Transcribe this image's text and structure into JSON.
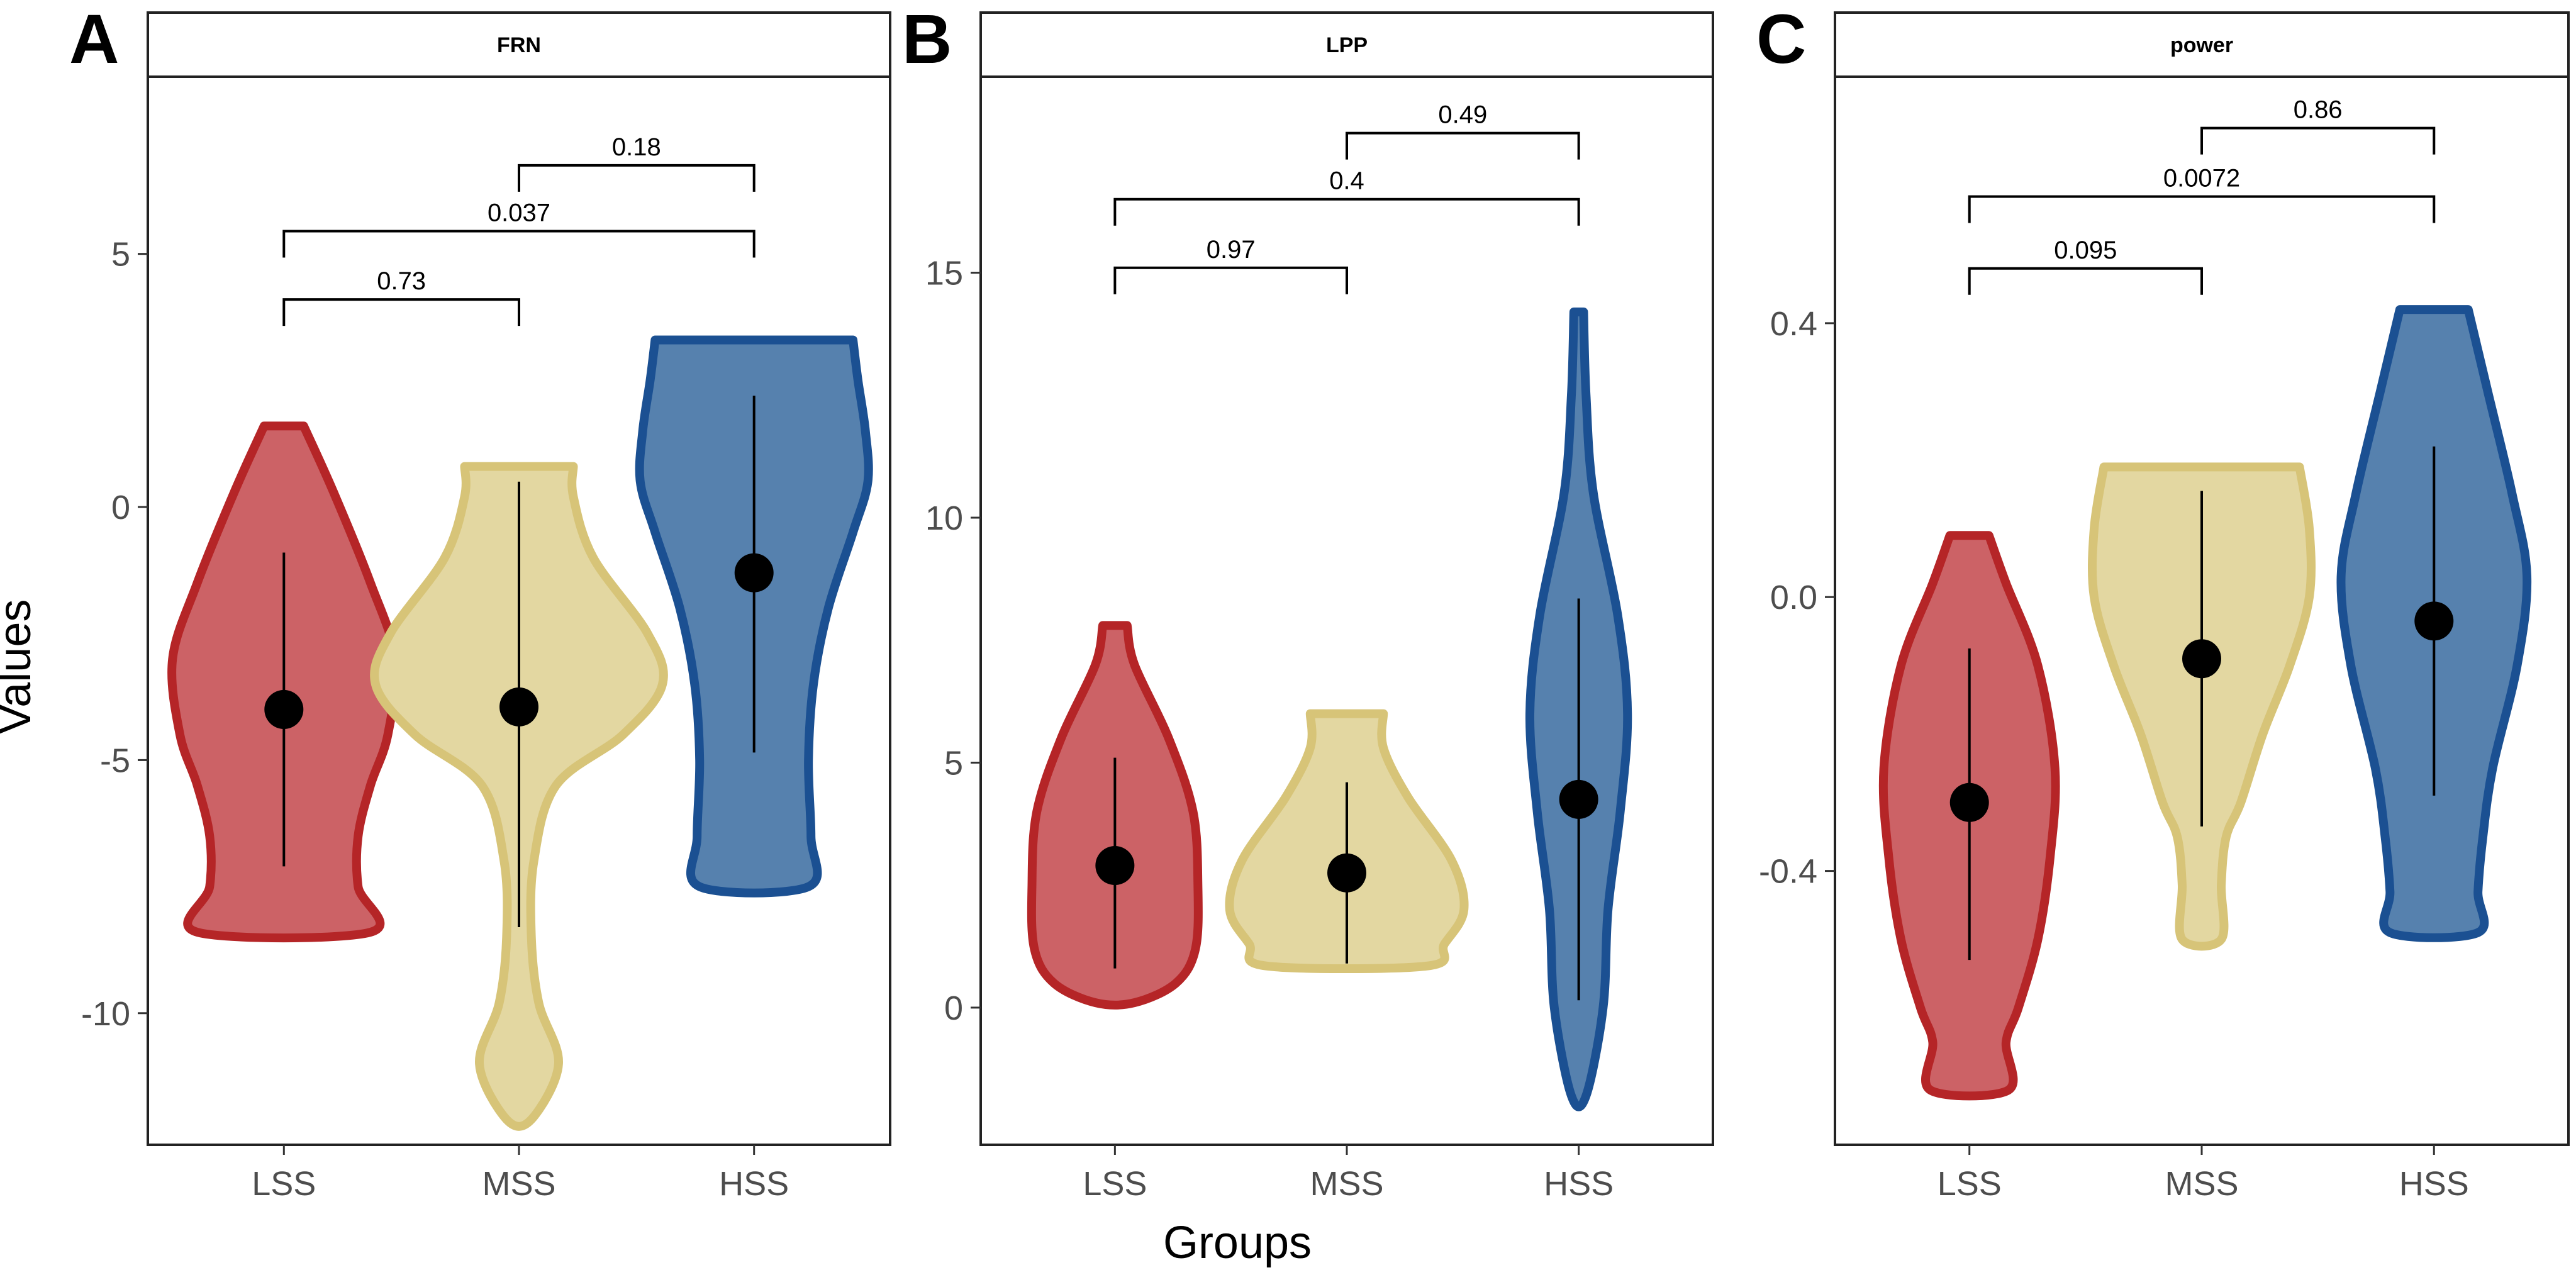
{
  "axis": {
    "x_title": "Groups",
    "y_title": "Values"
  },
  "colors": {
    "LSS": {
      "fill": "#CC6266",
      "stroke": "#B52527"
    },
    "MSS": {
      "fill": "#E3D7A1",
      "stroke": "#D7C478"
    },
    "HSS": {
      "fill": "#5681AE",
      "stroke": "#1B5092"
    }
  },
  "chart_data": [
    {
      "type": "violin",
      "panel_letter": "A",
      "title": "FRN",
      "categories": [
        "LSS",
        "MSS",
        "HSS"
      ],
      "xlabel": "",
      "ylabel": "Values",
      "ylim": [
        -12.6,
        8.5
      ],
      "yticks": [
        5,
        0,
        -5,
        -10
      ],
      "ytick_labels": [
        "5",
        "0",
        "-5",
        "-10"
      ],
      "grid": false,
      "groups": [
        {
          "name": "LSS",
          "mean": -4.0,
          "low": -7.1,
          "high": -0.9,
          "profile": [
            [
              1.6,
              0.08
            ],
            [
              0.3,
              0.2
            ],
            [
              -1.5,
              0.35
            ],
            [
              -3.0,
              0.45
            ],
            [
              -4.5,
              0.42
            ],
            [
              -5.5,
              0.35
            ],
            [
              -6.5,
              0.3
            ],
            [
              -7.5,
              0.3
            ],
            [
              -8.4,
              0.35
            ]
          ]
        },
        {
          "name": "MSS",
          "mean": -3.95,
          "low": -8.3,
          "high": 0.5,
          "profile": [
            [
              0.8,
              0.22
            ],
            [
              0.2,
              0.22
            ],
            [
              -1.0,
              0.3
            ],
            [
              -2.5,
              0.52
            ],
            [
              -3.5,
              0.58
            ],
            [
              -4.5,
              0.42
            ],
            [
              -5.5,
              0.15
            ],
            [
              -7.0,
              0.06
            ],
            [
              -8.5,
              0.05
            ],
            [
              -9.8,
              0.08
            ],
            [
              -11.0,
              0.16
            ],
            [
              -12.1,
              0.05
            ]
          ]
        },
        {
          "name": "HSS",
          "mean": -1.3,
          "low": -4.85,
          "high": 2.2,
          "profile": [
            [
              3.3,
              0.4
            ],
            [
              2.5,
              0.42
            ],
            [
              1.5,
              0.45
            ],
            [
              0.5,
              0.46
            ],
            [
              -0.5,
              0.4
            ],
            [
              -2.0,
              0.3
            ],
            [
              -3.5,
              0.24
            ],
            [
              -5.0,
              0.22
            ],
            [
              -6.5,
              0.23
            ],
            [
              -7.5,
              0.22
            ]
          ]
        }
      ],
      "comparisons": [
        {
          "pair": [
            "MSS",
            "HSS"
          ],
          "label": "0.18",
          "y": 6.75
        },
        {
          "pair": [
            "LSS",
            "HSS"
          ],
          "label": "0.037",
          "y": 5.45
        },
        {
          "pair": [
            "LSS",
            "MSS"
          ],
          "label": "0.73",
          "y": 4.1
        }
      ]
    },
    {
      "type": "violin",
      "panel_letter": "B",
      "title": "LPP",
      "categories": [
        "LSS",
        "MSS",
        "HSS"
      ],
      "xlabel": "",
      "ylabel": "",
      "ylim": [
        -2.8,
        19.0
      ],
      "yticks": [
        15,
        10,
        5,
        0
      ],
      "ytick_labels": [
        "15",
        "10",
        "5",
        "0"
      ],
      "grid": false,
      "groups": [
        {
          "name": "LSS",
          "mean": 2.9,
          "low": 0.8,
          "high": 5.1,
          "profile": [
            [
              7.8,
              0.05
            ],
            [
              7.0,
              0.08
            ],
            [
              5.5,
              0.22
            ],
            [
              4.0,
              0.32
            ],
            [
              2.5,
              0.34
            ],
            [
              1.2,
              0.33
            ],
            [
              0.5,
              0.25
            ],
            [
              0.1,
              0.08
            ]
          ]
        },
        {
          "name": "MSS",
          "mean": 2.75,
          "low": 0.9,
          "high": 4.6,
          "profile": [
            [
              6.0,
              0.15
            ],
            [
              5.3,
              0.15
            ],
            [
              4.3,
              0.25
            ],
            [
              3.0,
              0.43
            ],
            [
              2.0,
              0.48
            ],
            [
              1.3,
              0.4
            ],
            [
              0.85,
              0.33
            ]
          ]
        },
        {
          "name": "HSS",
          "mean": 4.25,
          "low": 0.15,
          "high": 8.35,
          "profile": [
            [
              14.2,
              0.02
            ],
            [
              12.5,
              0.03
            ],
            [
              10.5,
              0.06
            ],
            [
              8.0,
              0.16
            ],
            [
              6.0,
              0.2
            ],
            [
              4.0,
              0.17
            ],
            [
              2.0,
              0.12
            ],
            [
              0.0,
              0.1
            ],
            [
              -1.8,
              0.03
            ]
          ]
        }
      ],
      "comparisons": [
        {
          "pair": [
            "MSS",
            "HSS"
          ],
          "label": "0.49",
          "y": 17.85
        },
        {
          "pair": [
            "LSS",
            "HSS"
          ],
          "label": "0.4",
          "y": 16.5
        },
        {
          "pair": [
            "LSS",
            "MSS"
          ],
          "label": "0.97",
          "y": 15.1
        }
      ]
    },
    {
      "type": "violin",
      "panel_letter": "C",
      "title": "power",
      "categories": [
        "LSS",
        "MSS",
        "HSS"
      ],
      "xlabel": "",
      "ylabel": "",
      "ylim": [
        -0.8,
        0.76
      ],
      "yticks": [
        0.4,
        0.0,
        -0.4
      ],
      "ytick_labels": [
        "0.4",
        "0.0",
        "-0.4"
      ],
      "grid": false,
      "groups": [
        {
          "name": "LSS",
          "mean": -0.3,
          "low": -0.53,
          "high": -0.075,
          "profile": [
            [
              0.09,
              0.08
            ],
            [
              0.02,
              0.15
            ],
            [
              -0.1,
              0.28
            ],
            [
              -0.25,
              0.35
            ],
            [
              -0.38,
              0.33
            ],
            [
              -0.5,
              0.28
            ],
            [
              -0.6,
              0.2
            ],
            [
              -0.65,
              0.15
            ],
            [
              -0.72,
              0.16
            ]
          ]
        },
        {
          "name": "MSS",
          "mean": -0.09,
          "low": -0.335,
          "high": 0.155,
          "profile": [
            [
              0.19,
              0.4
            ],
            [
              0.1,
              0.44
            ],
            [
              0.0,
              0.44
            ],
            [
              -0.1,
              0.36
            ],
            [
              -0.2,
              0.25
            ],
            [
              -0.3,
              0.16
            ],
            [
              -0.35,
              0.1
            ],
            [
              -0.42,
              0.08
            ],
            [
              -0.5,
              0.08
            ]
          ]
        },
        {
          "name": "HSS",
          "mean": -0.035,
          "low": -0.29,
          "high": 0.22,
          "profile": [
            [
              0.42,
              0.14
            ],
            [
              0.3,
              0.22
            ],
            [
              0.15,
              0.32
            ],
            [
              0.03,
              0.38
            ],
            [
              -0.1,
              0.34
            ],
            [
              -0.25,
              0.24
            ],
            [
              -0.35,
              0.2
            ],
            [
              -0.43,
              0.18
            ],
            [
              -0.49,
              0.18
            ]
          ]
        }
      ],
      "comparisons": [
        {
          "pair": [
            "MSS",
            "HSS"
          ],
          "label": "0.86",
          "y": 0.685
        },
        {
          "pair": [
            "LSS",
            "HSS"
          ],
          "label": "0.0072",
          "y": 0.585
        },
        {
          "pair": [
            "LSS",
            "MSS"
          ],
          "label": "0.095",
          "y": 0.48
        }
      ]
    }
  ]
}
